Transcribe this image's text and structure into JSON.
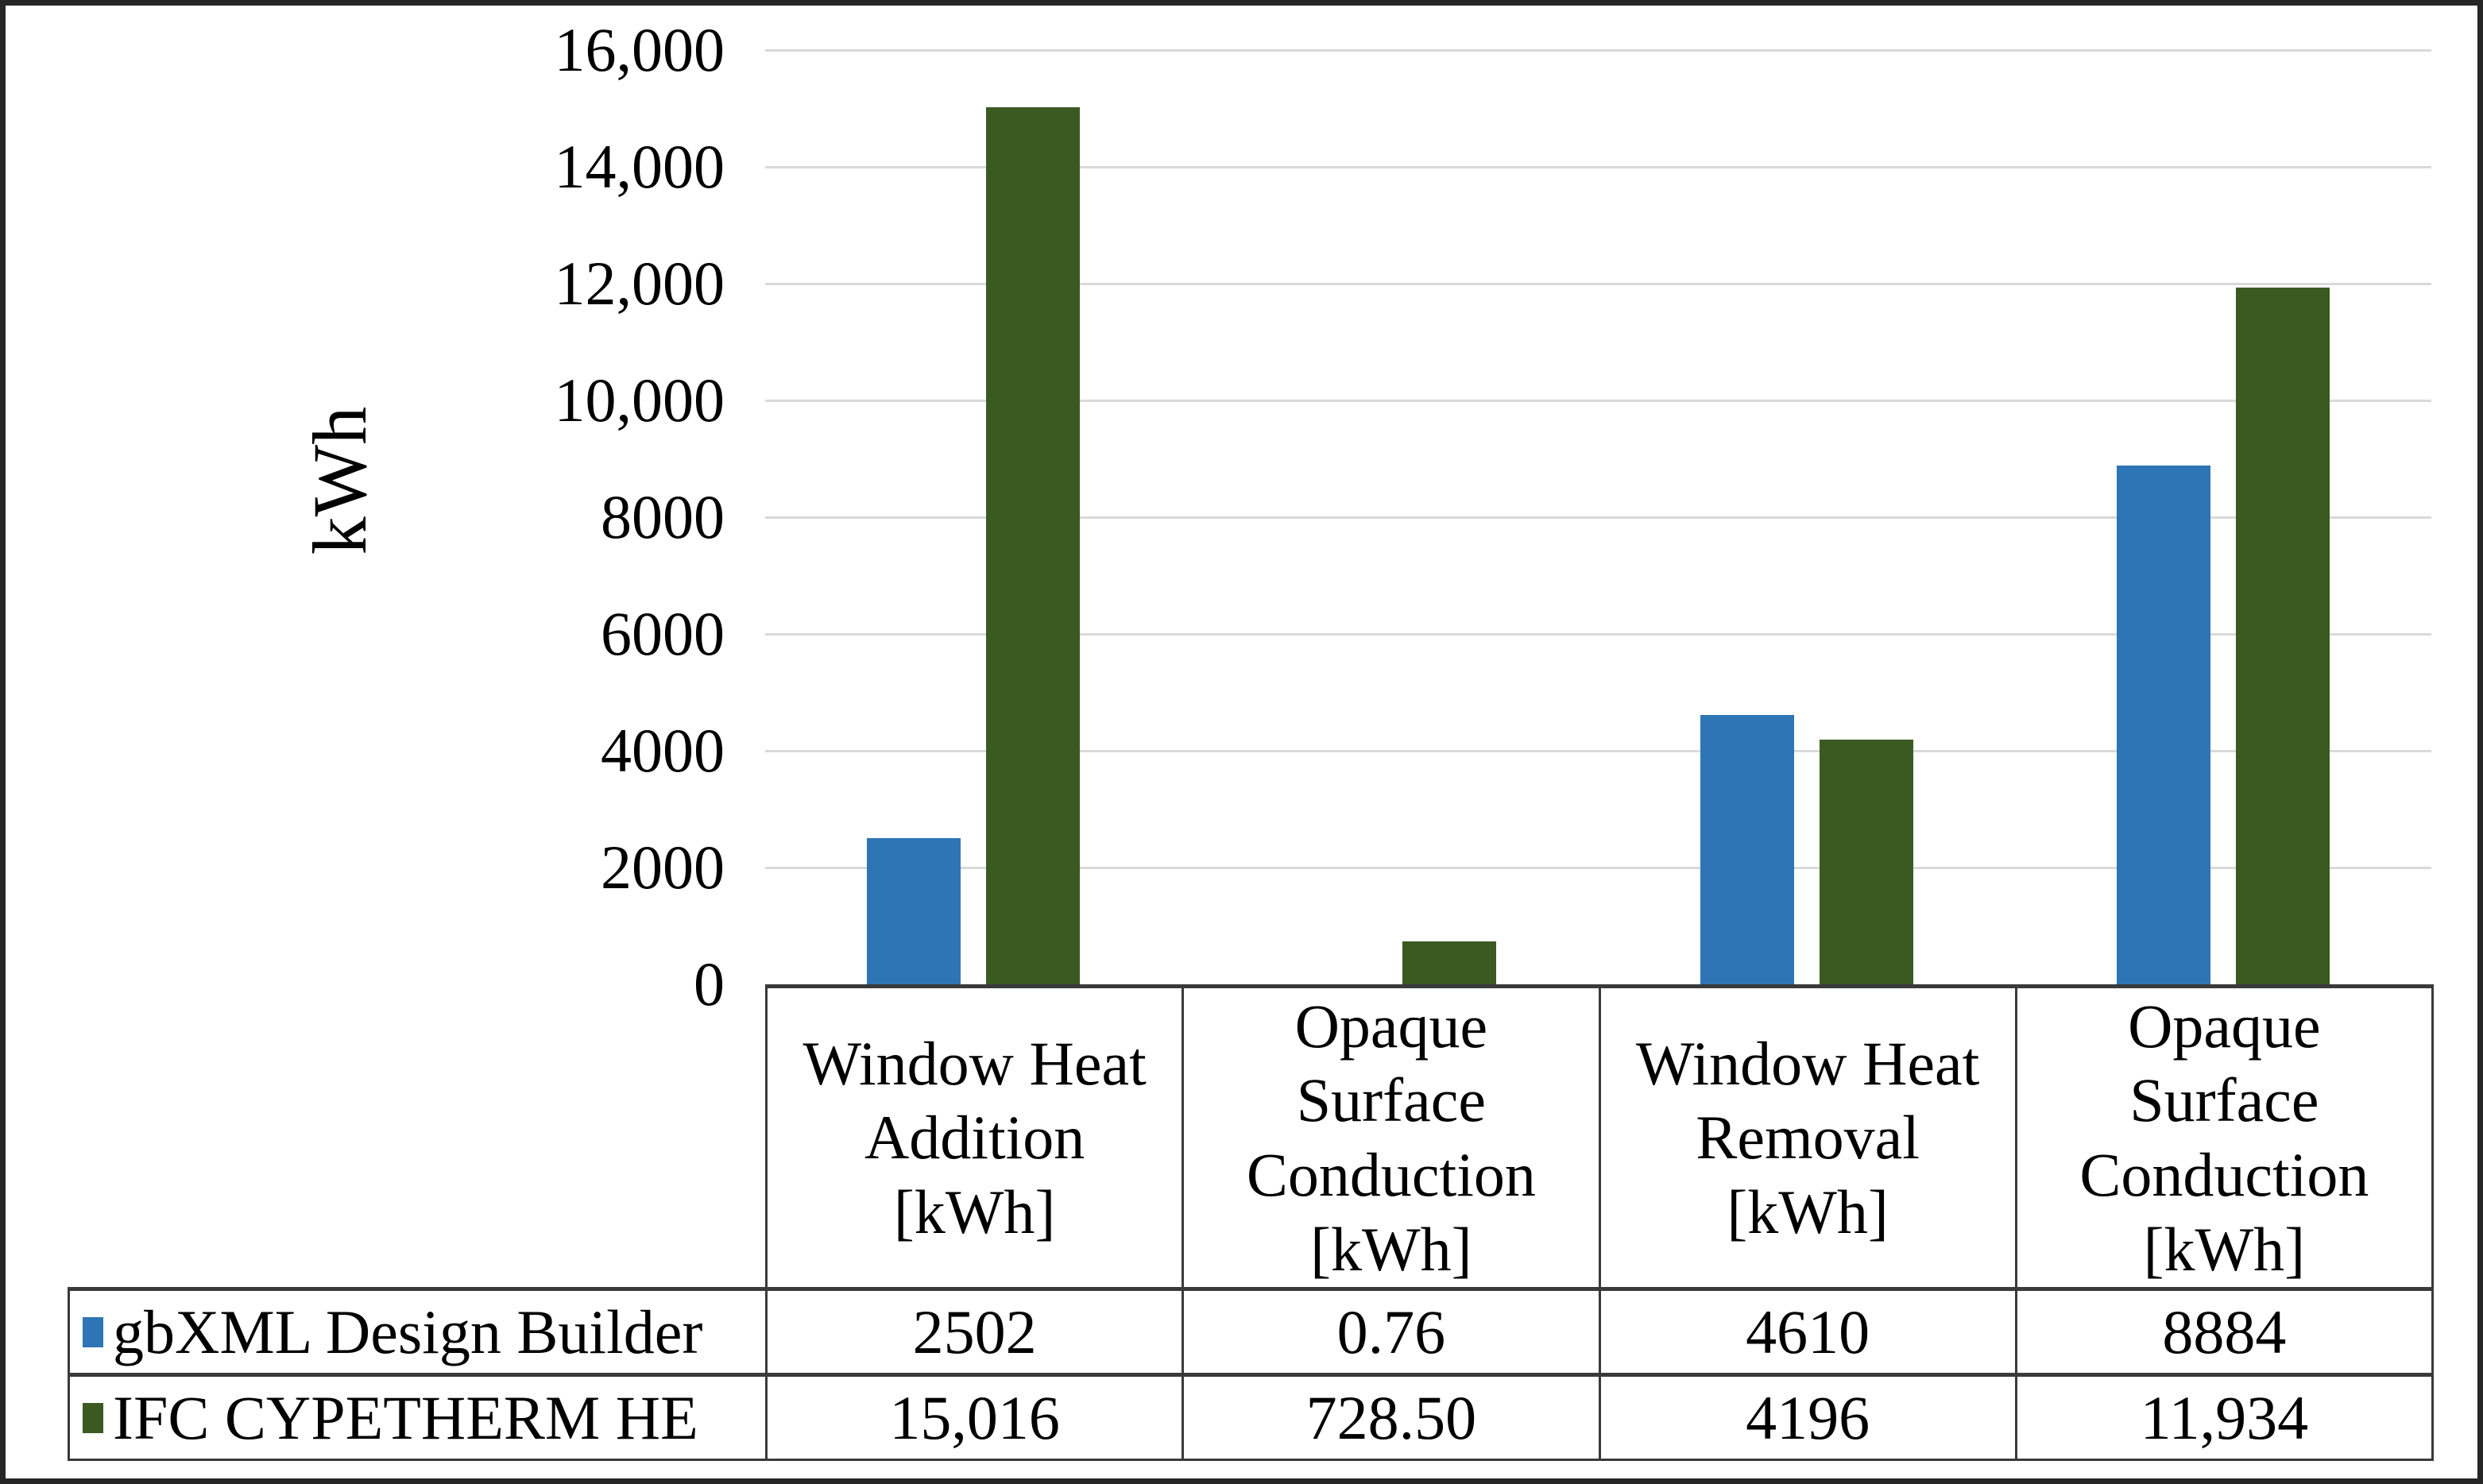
{
  "chart_data": {
    "type": "bar",
    "title": "",
    "xlabel": "",
    "ylabel": "kWh",
    "ylim": [
      0,
      16000
    ],
    "ytick_interval": 2000,
    "ytick_labels": [
      "0",
      "2000",
      "4000",
      "6000",
      "8000",
      "10,000",
      "12,000",
      "14,000",
      "16,000"
    ],
    "grid": true,
    "legend_position": "table-left",
    "categories": [
      "Window Heat Addition [kWh]",
      "Opaque Surface Conduction [kWh]",
      "Window Heat Removal [kWh]",
      "Opaque Surface Conduction [kWh]"
    ],
    "category_lines": [
      [
        "Window Heat",
        "Addition",
        "[kWh]"
      ],
      [
        "Opaque",
        "Surface",
        "Conduction",
        "[kWh]"
      ],
      [
        "Window Heat",
        "Removal",
        "[kWh]"
      ],
      [
        "Opaque",
        "Surface",
        "Conduction",
        "[kWh]"
      ]
    ],
    "series": [
      {
        "name": "gbXML Design Builder",
        "color": "#2E75B6",
        "values": [
          2502,
          0.76,
          4610,
          8884
        ],
        "display_values": [
          "2502",
          "0.76",
          "4610",
          "8884"
        ]
      },
      {
        "name": "IFC CYPETHERM HE",
        "color": "#3B5A22",
        "values": [
          15016,
          728.5,
          4196,
          11934
        ],
        "display_values": [
          "15,016",
          "728.50",
          "4196",
          "11,934"
        ]
      }
    ]
  },
  "colors": {
    "gridline": "#D9D9D9",
    "table_border": "#3A3A3A",
    "frame_border": "#262626",
    "text": "#000000",
    "background": "#FFFFFF"
  }
}
